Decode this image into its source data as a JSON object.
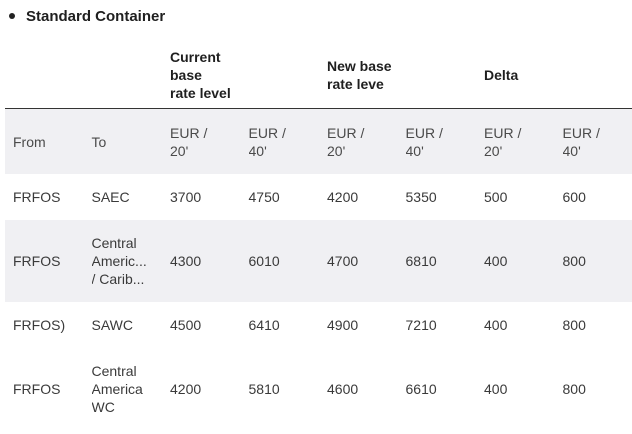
{
  "section": {
    "title": "Standard Container"
  },
  "table": {
    "group_headers": [
      {
        "line1": "",
        "line2": ""
      },
      {
        "line1": "",
        "line2": ""
      },
      {
        "line1": "Current base",
        "line2": "rate level"
      },
      {
        "line1": "",
        "line2": ""
      },
      {
        "line1": "New base",
        "line2": "rate leve"
      },
      {
        "line1": "",
        "line2": ""
      },
      {
        "line1": "Delta",
        "line2": ""
      },
      {
        "line1": "",
        "line2": ""
      }
    ],
    "sub_headers": [
      {
        "line1": "From",
        "line2": ""
      },
      {
        "line1": "To",
        "line2": ""
      },
      {
        "line1": "EUR /",
        "line2": "20'"
      },
      {
        "line1": "EUR /",
        "line2": "40'"
      },
      {
        "line1": "EUR /",
        "line2": "20'"
      },
      {
        "line1": "EUR /",
        "line2": "40'"
      },
      {
        "line1": "EUR /",
        "line2": "20'"
      },
      {
        "line1": "EUR /",
        "line2": "40'"
      }
    ],
    "rows": [
      {
        "from": "FRFOS",
        "to": [
          "SAEC"
        ],
        "cur20": "3700",
        "cur40": "4750",
        "new20": "4200",
        "new40": "5350",
        "d20": "500",
        "d40": "600"
      },
      {
        "from": "FRFOS",
        "to": [
          "Central",
          "Americ...",
          "/ Carib..."
        ],
        "cur20": "4300",
        "cur40": "6010",
        "new20": "4700",
        "new40": "6810",
        "d20": "400",
        "d40": "800"
      },
      {
        "from": "FRFOS)",
        "to": [
          "SAWC"
        ],
        "cur20": "4500",
        "cur40": "6410",
        "new20": "4900",
        "new40": "7210",
        "d20": "400",
        "d40": "800"
      },
      {
        "from": "FRFOS",
        "to": [
          "Central",
          "America",
          "WC"
        ],
        "cur20": "4200",
        "cur40": "5810",
        "new20": "4600",
        "new40": "6610",
        "d20": "400",
        "d40": "800"
      }
    ]
  }
}
